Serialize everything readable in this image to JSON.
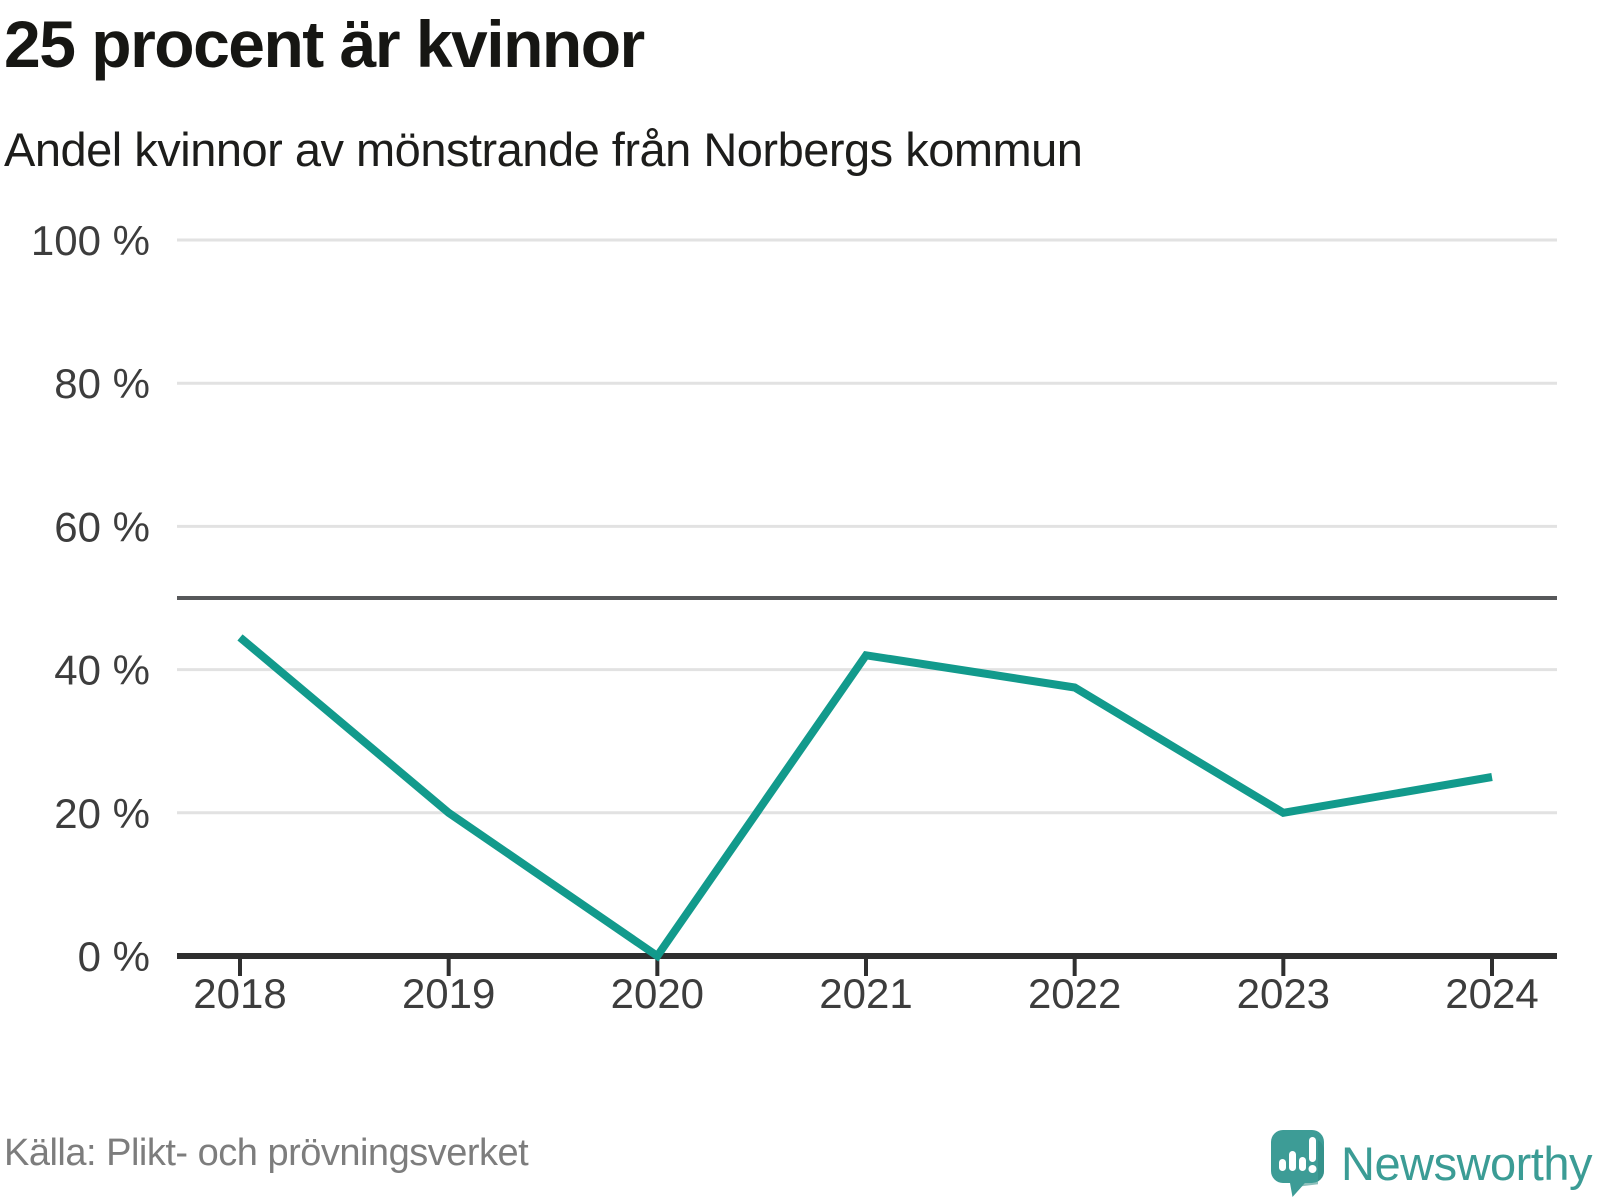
{
  "header": {
    "title": "25 procent är kvinnor",
    "subtitle": "Andel kvinnor av mönstrande från Norbergs kommun"
  },
  "chart_data": {
    "type": "line",
    "title": "25 procent är kvinnor",
    "subtitle": "Andel kvinnor av mönstrande från Norbergs kommun",
    "categories": [
      "2018",
      "2019",
      "2020",
      "2021",
      "2022",
      "2023",
      "2024"
    ],
    "series": [
      {
        "name": "Andel kvinnor av mönstrande",
        "values": [
          44.5,
          20,
          0,
          42,
          37.5,
          20,
          25
        ]
      }
    ],
    "ylim": [
      0,
      100
    ],
    "yticks": [
      0,
      20,
      40,
      60,
      80,
      100
    ],
    "ytick_labels": [
      "0 %",
      "20 %",
      "40 %",
      "60 %",
      "80 %",
      "100 %"
    ],
    "reference_line": 50,
    "grid": true,
    "legend": false,
    "line_color": "#129a8c",
    "grid_color": "#e2e2e2",
    "reference_line_color": "#57585a",
    "axis_color": "#2f2f2f",
    "tick_label_color": "#3d3d3d"
  },
  "footer": {
    "source": "Källa: Plikt- och prövningsverket",
    "brand": "Newsworthy",
    "brand_color": "#3b9c95",
    "logo": "newsworthy-speech-bubble-chart-icon"
  }
}
